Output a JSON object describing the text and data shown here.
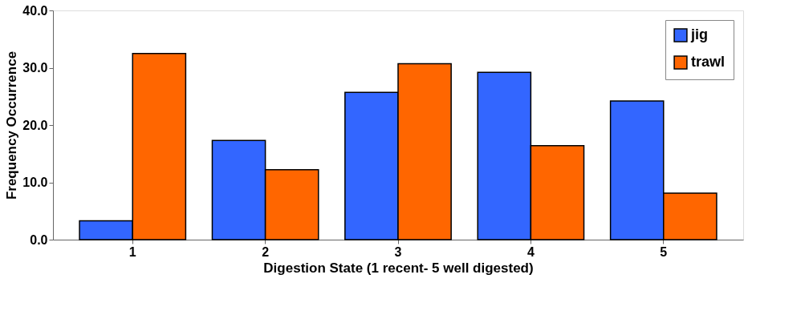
{
  "chart_data": {
    "type": "bar",
    "xlabel": "Digestion State (1 recent- 5 well digested)",
    "ylabel": "Frequency Occurrence",
    "categories": [
      "1",
      "2",
      "3",
      "4",
      "5"
    ],
    "series": [
      {
        "name": "jig",
        "color": "#3366ff",
        "values": [
          3.3,
          17.3,
          25.7,
          29.2,
          24.2
        ]
      },
      {
        "name": "trawl",
        "color": "#ff6600",
        "values": [
          32.5,
          12.2,
          30.7,
          16.4,
          8.1
        ]
      }
    ],
    "ylim": [
      0,
      40
    ],
    "yticks": [
      {
        "value": 0,
        "label": "0.0"
      },
      {
        "value": 10,
        "label": "10.0"
      },
      {
        "value": 20,
        "label": "20.0"
      },
      {
        "value": 30,
        "label": "30.0"
      },
      {
        "value": 40,
        "label": "40.0"
      }
    ],
    "grid": false,
    "legend": "top right"
  }
}
